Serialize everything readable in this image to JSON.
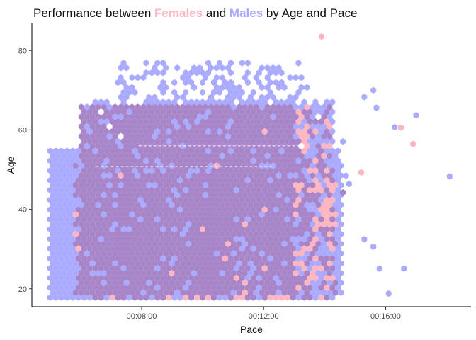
{
  "chart_data": {
    "type": "heatmap",
    "subtype": "hexbin",
    "title_parts": [
      {
        "text": "Performance between ",
        "color": "#111111",
        "bold": false
      },
      {
        "text": "Females",
        "color": "#FFB6C1",
        "bold": true
      },
      {
        "text": " and ",
        "color": "#111111",
        "bold": false
      },
      {
        "text": "Males",
        "color": "#AAAAFF",
        "bold": true
      },
      {
        "text": " by Age and Pace",
        "color": "#111111",
        "bold": false
      }
    ],
    "xlabel": "Pace",
    "ylabel": "Age",
    "x_unit": "minutes per mile",
    "xlim": [
      4.4,
      18.8
    ],
    "ylim": [
      15.5,
      87
    ],
    "x_ticks": [
      {
        "value": 8,
        "label": "00:08:00"
      },
      {
        "value": 12,
        "label": "00:12:00"
      },
      {
        "value": 16,
        "label": "00:16:00"
      }
    ],
    "y_ticks": [
      {
        "value": 20,
        "label": "20"
      },
      {
        "value": 40,
        "label": "40"
      },
      {
        "value": 60,
        "label": "60"
      },
      {
        "value": 80,
        "label": "80"
      }
    ],
    "grid": false,
    "legend": "none",
    "colors": {
      "female": "#FFB6C1",
      "male": "#AAAAFF",
      "overlap": "#A885C8"
    },
    "series": [
      {
        "group": "male",
        "regions": [
          {
            "x": [
              5.0,
              14.6
            ],
            "y": [
              17.5,
              55
            ],
            "density": "high"
          },
          {
            "x": [
              6.2,
              14.3
            ],
            "y": [
              55,
              68
            ],
            "density": "medium"
          },
          {
            "x": [
              7.2,
              13.5
            ],
            "y": [
              68,
              77
            ],
            "density": "low"
          }
        ]
      },
      {
        "group": "female",
        "regions": [
          {
            "x": [
              5.8,
              14.4
            ],
            "y": [
              17.5,
              52
            ],
            "density": "high"
          },
          {
            "x": [
              11.3,
              14.2
            ],
            "y": [
              52,
              67
            ],
            "density": "medium"
          }
        ]
      },
      {
        "group": "overlap",
        "regions": [
          {
            "x": [
              6.0,
              13.0
            ],
            "y": [
              18.5,
              66.5
            ],
            "density": "high"
          }
        ]
      }
    ],
    "reference_lines": [
      {
        "y": 50.8,
        "x": [
          6.5,
          12.3
        ],
        "style": "dashed",
        "color": "#ffffff"
      },
      {
        "y": 56.0,
        "x": [
          7.9,
          13.3
        ],
        "style": "dashed",
        "color": "#ffffff"
      }
    ],
    "outliers": [
      {
        "group": "male",
        "x": 18.1,
        "y": 48.3
      },
      {
        "group": "male",
        "x": 17.0,
        "y": 63.7
      },
      {
        "group": "male",
        "x": 15.6,
        "y": 70.0
      },
      {
        "group": "male",
        "x": 15.3,
        "y": 68.3
      },
      {
        "group": "male",
        "x": 15.7,
        "y": 65.6
      },
      {
        "group": "male",
        "x": 16.3,
        "y": 60.7
      },
      {
        "group": "male",
        "x": 16.1,
        "y": 18.8
      },
      {
        "group": "male",
        "x": 16.6,
        "y": 25.1
      },
      {
        "group": "male",
        "x": 15.8,
        "y": 25.1
      },
      {
        "group": "male",
        "x": 15.6,
        "y": 30.6
      },
      {
        "group": "male",
        "x": 15.3,
        "y": 32.5
      },
      {
        "group": "male",
        "x": 14.8,
        "y": 46.4
      },
      {
        "group": "male",
        "x": 14.7,
        "y": 48.5
      },
      {
        "group": "male",
        "x": 14.4,
        "y": 52.0
      },
      {
        "group": "male",
        "x": 14.6,
        "y": 57.1
      },
      {
        "group": "female",
        "x": 13.9,
        "y": 83.5
      },
      {
        "group": "female",
        "x": 16.5,
        "y": 60.6
      },
      {
        "group": "female",
        "x": 16.9,
        "y": 56.5
      },
      {
        "group": "female",
        "x": 15.2,
        "y": 49.3
      },
      {
        "group": "overlap",
        "x": 14.6,
        "y": 44.3
      }
    ]
  }
}
